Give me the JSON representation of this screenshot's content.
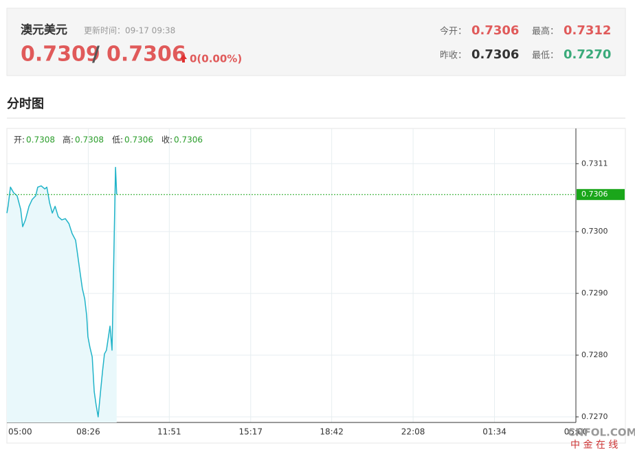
{
  "header": {
    "title": "澳元美元",
    "update_time": "更新时间：09-17 09:38",
    "bid": "0.7309",
    "separator": "/",
    "ask": "0.7306",
    "change": "0(0.00%)",
    "stats": [
      {
        "label": "今开：",
        "value": "0.7306"
      },
      {
        "label": "最高：",
        "value": "0.7312"
      },
      {
        "label": "昨收：",
        "value": "0.7306"
      },
      {
        "label": "最低：",
        "value": "0.7270"
      }
    ]
  },
  "section_title": "分时图",
  "chart_data": {
    "type": "line",
    "color": "#1fb3c8",
    "fill": "#e9f8fb",
    "info": [
      {
        "label": "开:",
        "value": 0.7308
      },
      {
        "label": "高:",
        "value": 0.7308
      },
      {
        "label": "低:",
        "value": 0.7306
      },
      {
        "label": "收:",
        "value": 0.7306
      }
    ],
    "x": [
      "05:00",
      "05:03",
      "05:09",
      "05:17",
      "05:26",
      "05:35",
      "05:40",
      "05:47",
      "05:56",
      "06:04",
      "06:13",
      "06:18",
      "06:27",
      "06:36",
      "06:41",
      "06:48",
      "06:55",
      "07:02",
      "07:10",
      "07:19",
      "07:28",
      "07:37",
      "07:45",
      "07:54",
      "07:59",
      "08:06",
      "08:11",
      "08:17",
      "08:22",
      "08:25",
      "08:30",
      "08:36",
      "08:41",
      "08:46",
      "08:51",
      "08:57",
      "09:02",
      "09:07",
      "09:12",
      "09:17",
      "09:21",
      "09:26",
      "09:30",
      "09:33",
      "09:35",
      "09:38"
    ],
    "values": [
      0.7303,
      0.73041,
      0.73072,
      0.73063,
      0.73058,
      0.73036,
      0.73008,
      0.73019,
      0.73041,
      0.73052,
      0.73058,
      0.73072,
      0.73074,
      0.73069,
      0.73072,
      0.73047,
      0.7303,
      0.73041,
      0.73024,
      0.73019,
      0.73021,
      0.73013,
      0.72997,
      0.72986,
      0.72963,
      0.7293,
      0.72908,
      0.72891,
      0.72863,
      0.7283,
      0.72813,
      0.72797,
      0.72741,
      0.72719,
      0.727,
      0.72741,
      0.72774,
      0.72802,
      0.72808,
      0.7283,
      0.72847,
      0.72808,
      0.72941,
      0.73041,
      0.73104,
      0.7306
    ],
    "reference_value": 0.7306,
    "reference_color": "#1aa61a",
    "ylim": [
      0.72691,
      0.73167
    ],
    "yticks": [
      0.7311,
      {
        "value": 0.73,
        "label": "0.7300"
      },
      {
        "value": 0.729,
        "label": "0.7290"
      },
      {
        "value": 0.728,
        "label": "0.7280"
      },
      {
        "value": 0.727,
        "label": "0.7270"
      }
    ],
    "xticks": [
      "05:00",
      "08:26",
      "11:51",
      "15:17",
      "18:42",
      "22:08",
      "01:34",
      "05:00"
    ],
    "grid": true
  },
  "watermark": {
    "brand": "CNFOL.COM",
    "name": "中 金 在 线"
  }
}
